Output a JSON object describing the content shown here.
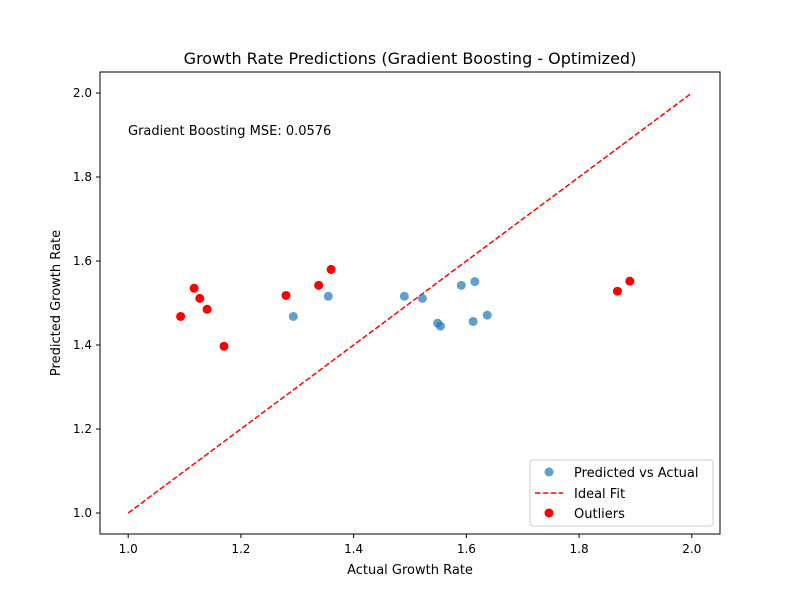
{
  "chart_data": {
    "type": "scatter",
    "title": "Growth Rate Predictions (Gradient Boosting - Optimized)",
    "xlabel": "Actual Growth Rate",
    "ylabel": "Predicted Growth Rate",
    "xlim": [
      0.95,
      2.05
    ],
    "ylim": [
      0.95,
      2.05
    ],
    "x_ticks": [
      "1.0",
      "1.2",
      "1.4",
      "1.6",
      "1.8",
      "2.0"
    ],
    "y_ticks": [
      "1.0",
      "1.2",
      "1.4",
      "1.6",
      "1.8",
      "2.0"
    ],
    "grid": false,
    "legend_position": "lower-right",
    "annotation": "Gradient Boosting MSE: 0.0576",
    "series": [
      {
        "name": "Predicted vs Actual",
        "kind": "scatter",
        "color": "#1f77b4",
        "alpha": 0.7,
        "points": [
          {
            "x": 1.293,
            "y": 1.468
          },
          {
            "x": 1.355,
            "y": 1.516
          },
          {
            "x": 1.49,
            "y": 1.516
          },
          {
            "x": 1.522,
            "y": 1.511
          },
          {
            "x": 1.549,
            "y": 1.452
          },
          {
            "x": 1.554,
            "y": 1.445
          },
          {
            "x": 1.591,
            "y": 1.542
          },
          {
            "x": 1.612,
            "y": 1.456
          },
          {
            "x": 1.615,
            "y": 1.551
          },
          {
            "x": 1.637,
            "y": 1.471
          }
        ]
      },
      {
        "name": "Ideal Fit",
        "kind": "line",
        "color": "#ff0000",
        "dash": true,
        "points": [
          {
            "x": 1.0,
            "y": 1.0
          },
          {
            "x": 2.0,
            "y": 2.0
          }
        ]
      },
      {
        "name": "Outliers",
        "kind": "scatter",
        "color": "#ff0000",
        "alpha": 1,
        "points": [
          {
            "x": 1.093,
            "y": 1.468
          },
          {
            "x": 1.117,
            "y": 1.535
          },
          {
            "x": 1.127,
            "y": 1.511
          },
          {
            "x": 1.14,
            "y": 1.485
          },
          {
            "x": 1.17,
            "y": 1.397
          },
          {
            "x": 1.28,
            "y": 1.518
          },
          {
            "x": 1.338,
            "y": 1.542
          },
          {
            "x": 1.36,
            "y": 1.58
          },
          {
            "x": 1.868,
            "y": 1.528
          },
          {
            "x": 1.89,
            "y": 1.552
          }
        ]
      }
    ]
  }
}
